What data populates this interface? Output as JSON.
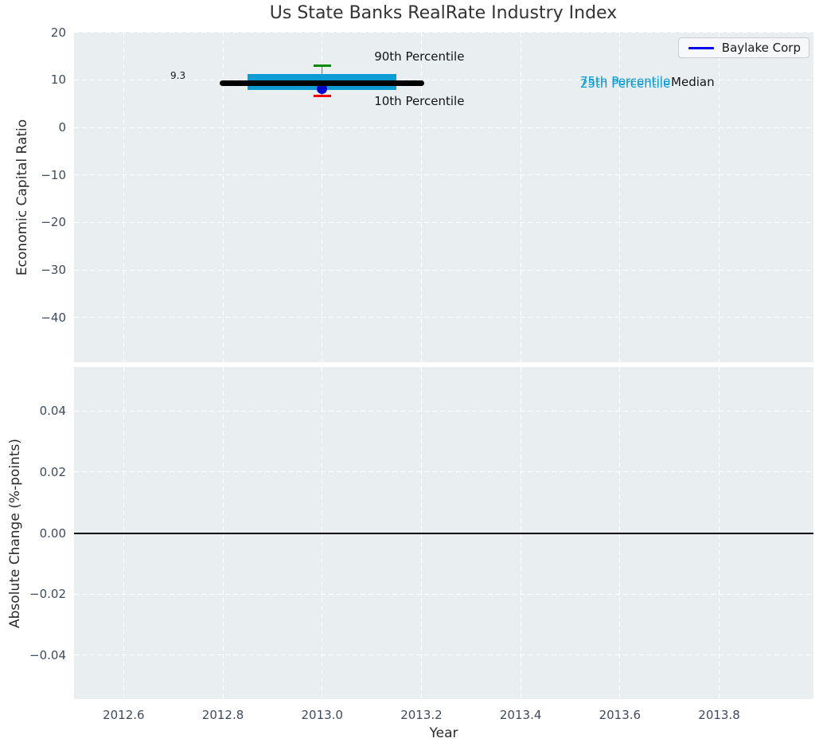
{
  "title": "Us State Banks RealRate Industry Index",
  "legend": {
    "label": "Baylake Corp"
  },
  "axes": {
    "top": {
      "ylabel": "Economic Capital Ratio",
      "yticks": [
        "20",
        "10",
        "0",
        "−10",
        "−20",
        "−30",
        "−40"
      ]
    },
    "bottom": {
      "ylabel": "Absolute Change (%-points)",
      "yticks": [
        "0.04",
        "0.02",
        "0.00",
        "−0.02",
        "−0.04"
      ],
      "xlabel": "Year",
      "xticks": [
        "2012.6",
        "2012.8",
        "2013.0",
        "2013.2",
        "2013.4",
        "2013.6",
        "2013.8"
      ]
    }
  },
  "annotations": {
    "p90_label": "90th Percentile",
    "p10_label": "10th Percentile",
    "p75_label": "75th Percentile",
    "p25_label": "25th Percentile",
    "median_label": "Median",
    "median_value_label": "9.3"
  },
  "colors": {
    "axes_background": "#e9eef1",
    "iqr_box": "#0c9bd3",
    "median_line": "#000000",
    "p90_cap": "#0b8a0b",
    "p10_cap": "#ef0000",
    "whisker": "#777777",
    "company_point": "#0000cd",
    "legend_line": "#0000ee",
    "percentile_text": "#0c9bd3",
    "tick_text": "#3e4b60"
  },
  "chart_data": {
    "type": "boxplot",
    "title": "Us State Banks RealRate Industry Index",
    "xlabel": "Year",
    "x": 2013.0,
    "xlim": [
      2012.5,
      2013.99
    ],
    "xticks": [
      2012.6,
      2012.8,
      2013.0,
      2013.2,
      2013.4,
      2013.6,
      2013.8
    ],
    "grid": "dashed-white",
    "legend_position": "upper right",
    "panels": [
      {
        "ylabel": "Economic Capital Ratio",
        "ylim": [
          -49.4,
          20.1
        ],
        "yticks": [
          20,
          10,
          0,
          -10,
          -20,
          -30,
          -40
        ],
        "industry_index": {
          "p90": 13.0,
          "p75": 11.2,
          "median": 9.3,
          "p25": 7.9,
          "p10": 6.6,
          "median_line_span_years": [
            2012.8,
            2013.2
          ],
          "box_span_years": [
            2012.85,
            2013.15
          ]
        },
        "company_point": {
          "name": "Baylake Corp",
          "x": 2013.0,
          "y": 8.2
        }
      },
      {
        "ylabel": "Absolute Change (%-points)",
        "ylim": [
          -0.0545,
          0.0545
        ],
        "yticks": [
          0.04,
          0.02,
          0.0,
          -0.02,
          -0.04
        ],
        "zero_line": 0.0,
        "series": []
      }
    ]
  }
}
